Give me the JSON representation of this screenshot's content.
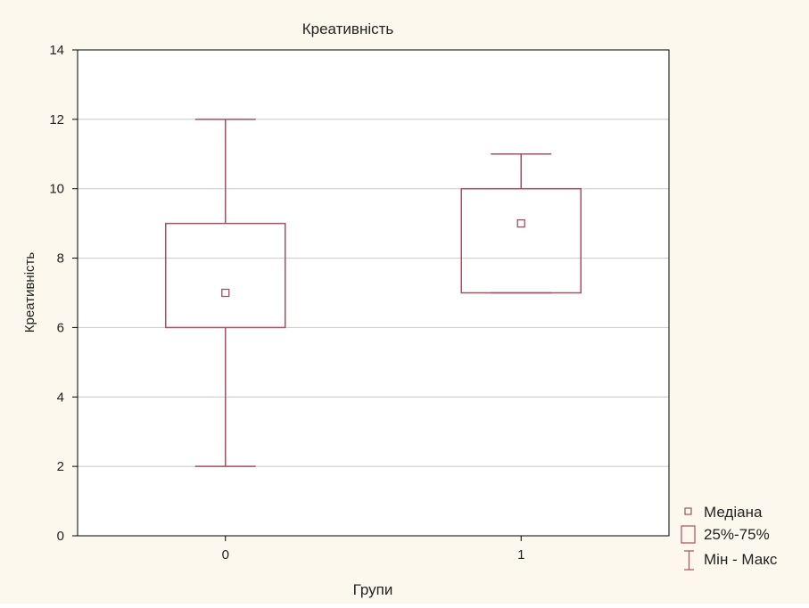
{
  "chart_data": {
    "type": "box",
    "title": "Креативність",
    "xlabel": "Групи",
    "ylabel": "Креативність",
    "categories": [
      "0",
      "1"
    ],
    "boxes": [
      {
        "category": "0",
        "min": 2,
        "q1": 6,
        "median": 7,
        "q3": 9,
        "max": 12
      },
      {
        "category": "1",
        "min": 7,
        "q1": 7,
        "median": 9,
        "q3": 10,
        "max": 11
      }
    ],
    "ylim": [
      0,
      14
    ],
    "yticks": [
      0,
      2,
      4,
      6,
      8,
      10,
      12,
      14
    ],
    "grid": "horizontal",
    "legend": {
      "placement": "bottom-right",
      "entries": [
        {
          "marker": "median",
          "label": "Медіана"
        },
        {
          "marker": "box",
          "label": "25%-75%"
        },
        {
          "marker": "whisker",
          "label": "Мін - Макс"
        }
      ]
    },
    "colors": {
      "background": "#fdf8ee",
      "plot_area": "#ffffff",
      "box": "#a45060",
      "grid": "#c8c8c8",
      "axis": "#000000",
      "text": "#222222"
    }
  }
}
